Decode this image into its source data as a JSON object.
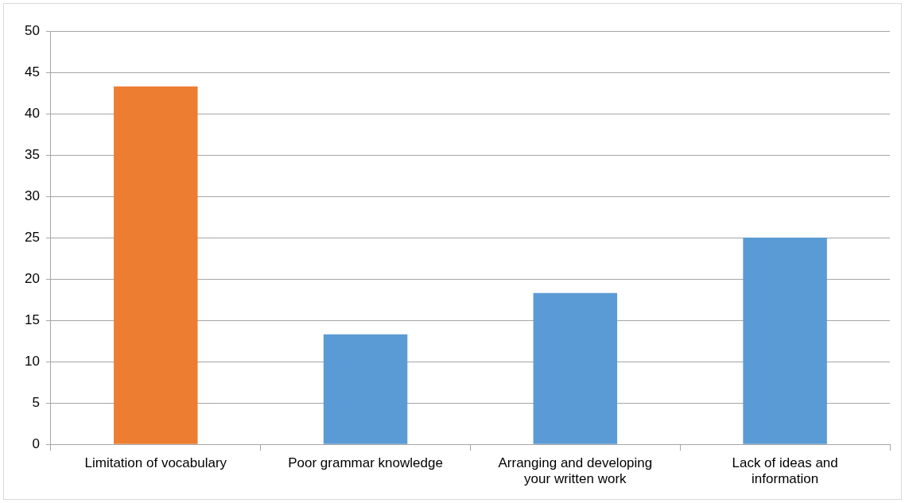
{
  "chart_data": {
    "type": "bar",
    "categories": [
      "Limitation of vocabulary",
      "Poor grammar knowledge",
      "Arranging and developing your written work",
      "Lack of ideas and information"
    ],
    "values": [
      43.3,
      13.3,
      18.3,
      25
    ],
    "colors": [
      "#ed7d31",
      "#5b9bd5",
      "#5b9bd5",
      "#5b9bd5"
    ],
    "ylim": [
      0,
      50
    ],
    "yticks": [
      0,
      5,
      10,
      15,
      20,
      25,
      30,
      35,
      40,
      45,
      50
    ],
    "grid": "y",
    "legend": false
  }
}
